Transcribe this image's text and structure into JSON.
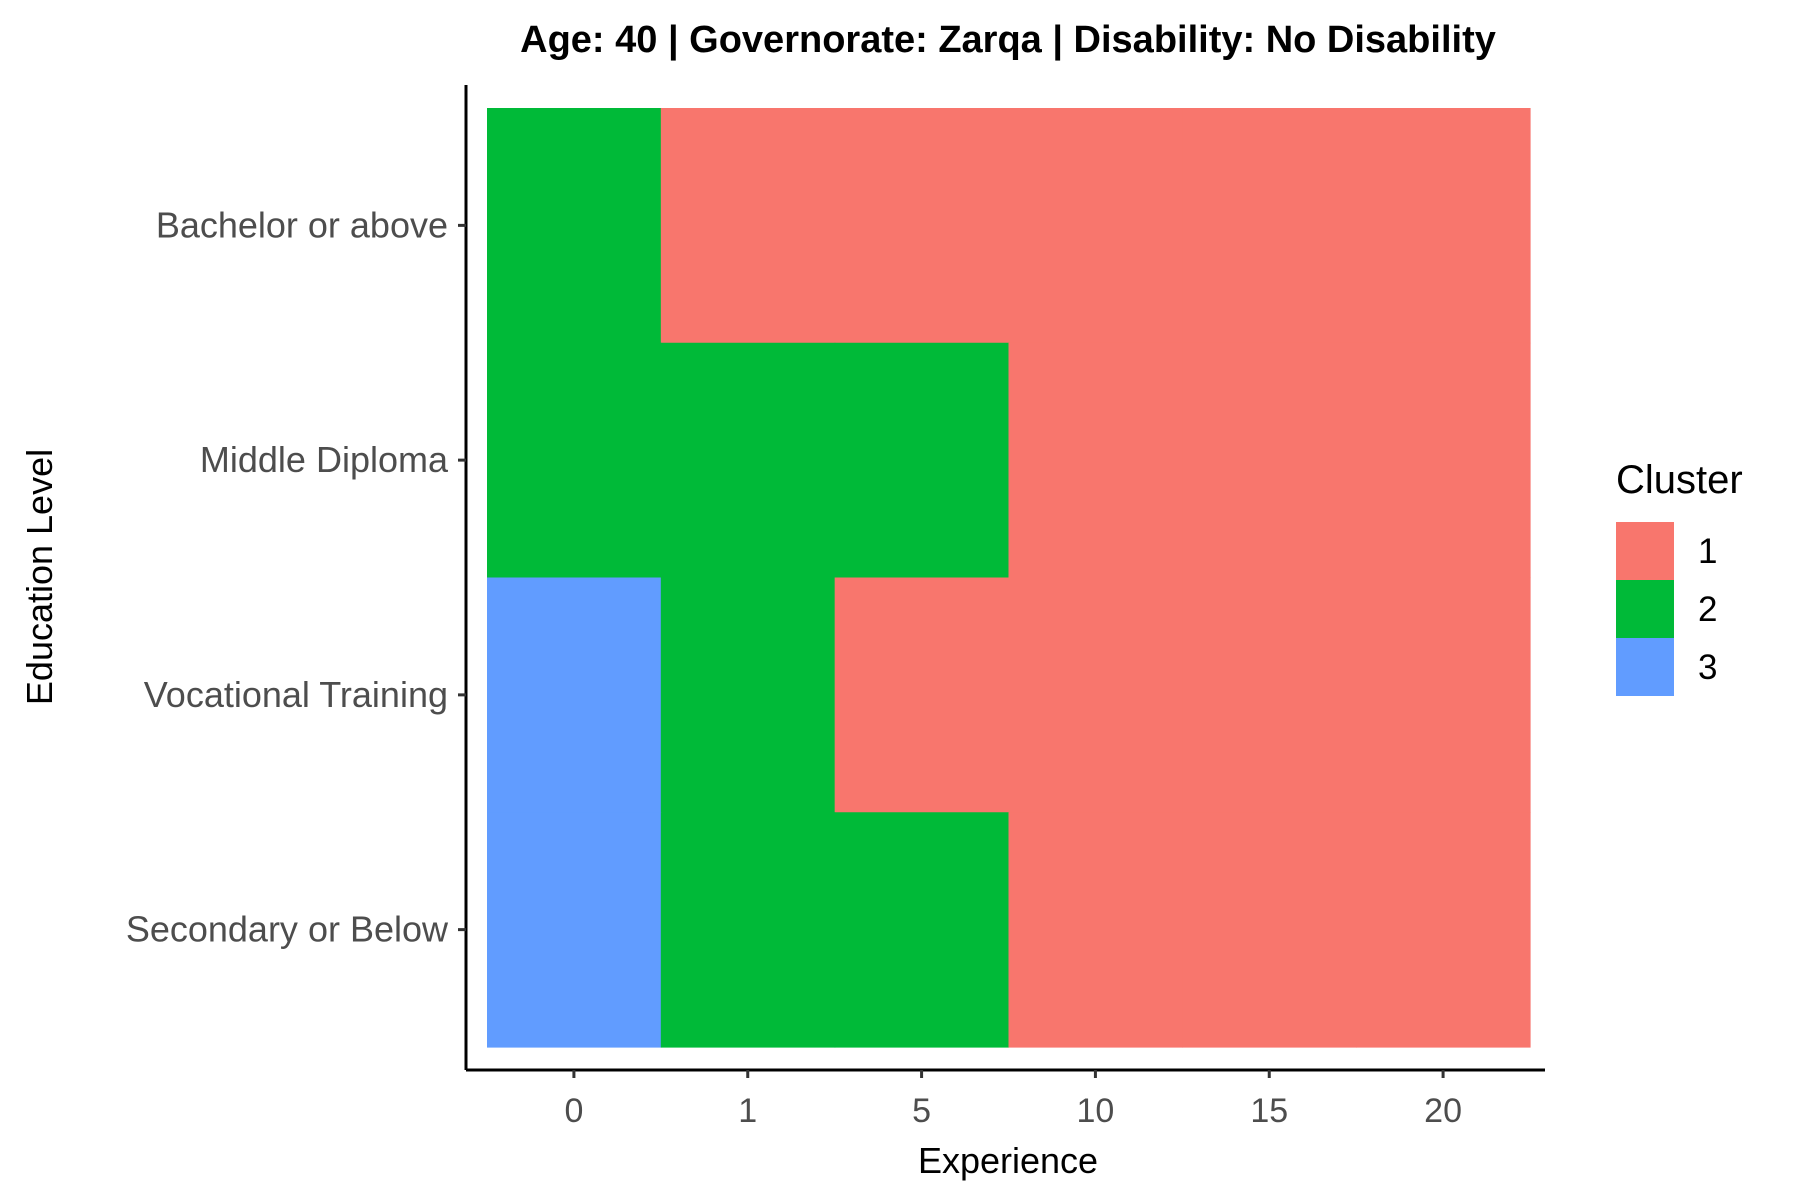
{
  "chart_data": {
    "type": "heatmap",
    "title": "Age: 40 | Governorate: Zarqa | Disability: No Disability",
    "xlabel": "Experience",
    "ylabel": "Education Level",
    "x_categories": [
      "0",
      "1",
      "5",
      "10",
      "15",
      "20"
    ],
    "y_categories": [
      "Bachelor or above",
      "Middle Diploma",
      "Vocational Training",
      "Secondary or Below"
    ],
    "values": [
      [
        2,
        1,
        1,
        1,
        1,
        1
      ],
      [
        2,
        2,
        2,
        1,
        1,
        1
      ],
      [
        3,
        2,
        1,
        1,
        1,
        1
      ],
      [
        3,
        2,
        2,
        1,
        1,
        1
      ]
    ],
    "legend": {
      "title": "Cluster",
      "position": "right",
      "entries": [
        {
          "label": "1",
          "value": 1,
          "color": "#F8766D"
        },
        {
          "label": "2",
          "value": 2,
          "color": "#00BA38"
        },
        {
          "label": "3",
          "value": 3,
          "color": "#619CFF"
        }
      ]
    },
    "grid": false
  }
}
